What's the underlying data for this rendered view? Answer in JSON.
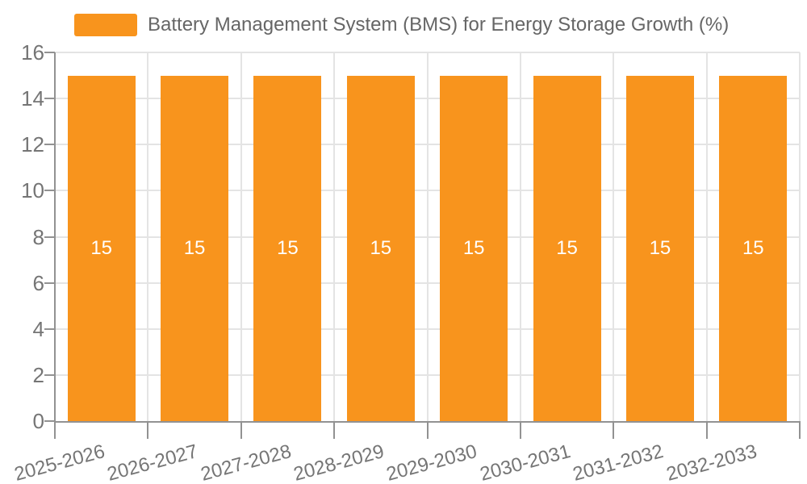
{
  "chart_data": {
    "type": "bar",
    "title": "Battery Management System (BMS) for Energy Storage Growth (%)",
    "categories": [
      "2025-2026",
      "2026-2027",
      "2027-2028",
      "2028-2029",
      "2029-2030",
      "2030-2031",
      "2031-2032",
      "2032-2033"
    ],
    "values": [
      15,
      15,
      15,
      15,
      15,
      15,
      15,
      15
    ],
    "bar_labels": [
      "15",
      "15",
      "15",
      "15",
      "15",
      "15",
      "15",
      "15"
    ],
    "xlabel": "",
    "ylabel": "",
    "ylim": [
      0,
      16
    ],
    "yticks": [
      0,
      2,
      4,
      6,
      8,
      10,
      12,
      14,
      16
    ],
    "grid": true,
    "legend_position": "top-left",
    "x_label_rotation_deg": -15
  },
  "legend": {
    "series_label": "Battery Management System (BMS) for Energy Storage Growth (%)",
    "swatch_color": "#F8941D"
  },
  "colors": {
    "bar": "#F8941D",
    "bar_value_label": "#FFFFFF",
    "axis_line": "#929292",
    "gridline": "#E4E4E4",
    "tick_label": "#757575",
    "legend_text": "#666666",
    "background": "#FFFFFF"
  }
}
